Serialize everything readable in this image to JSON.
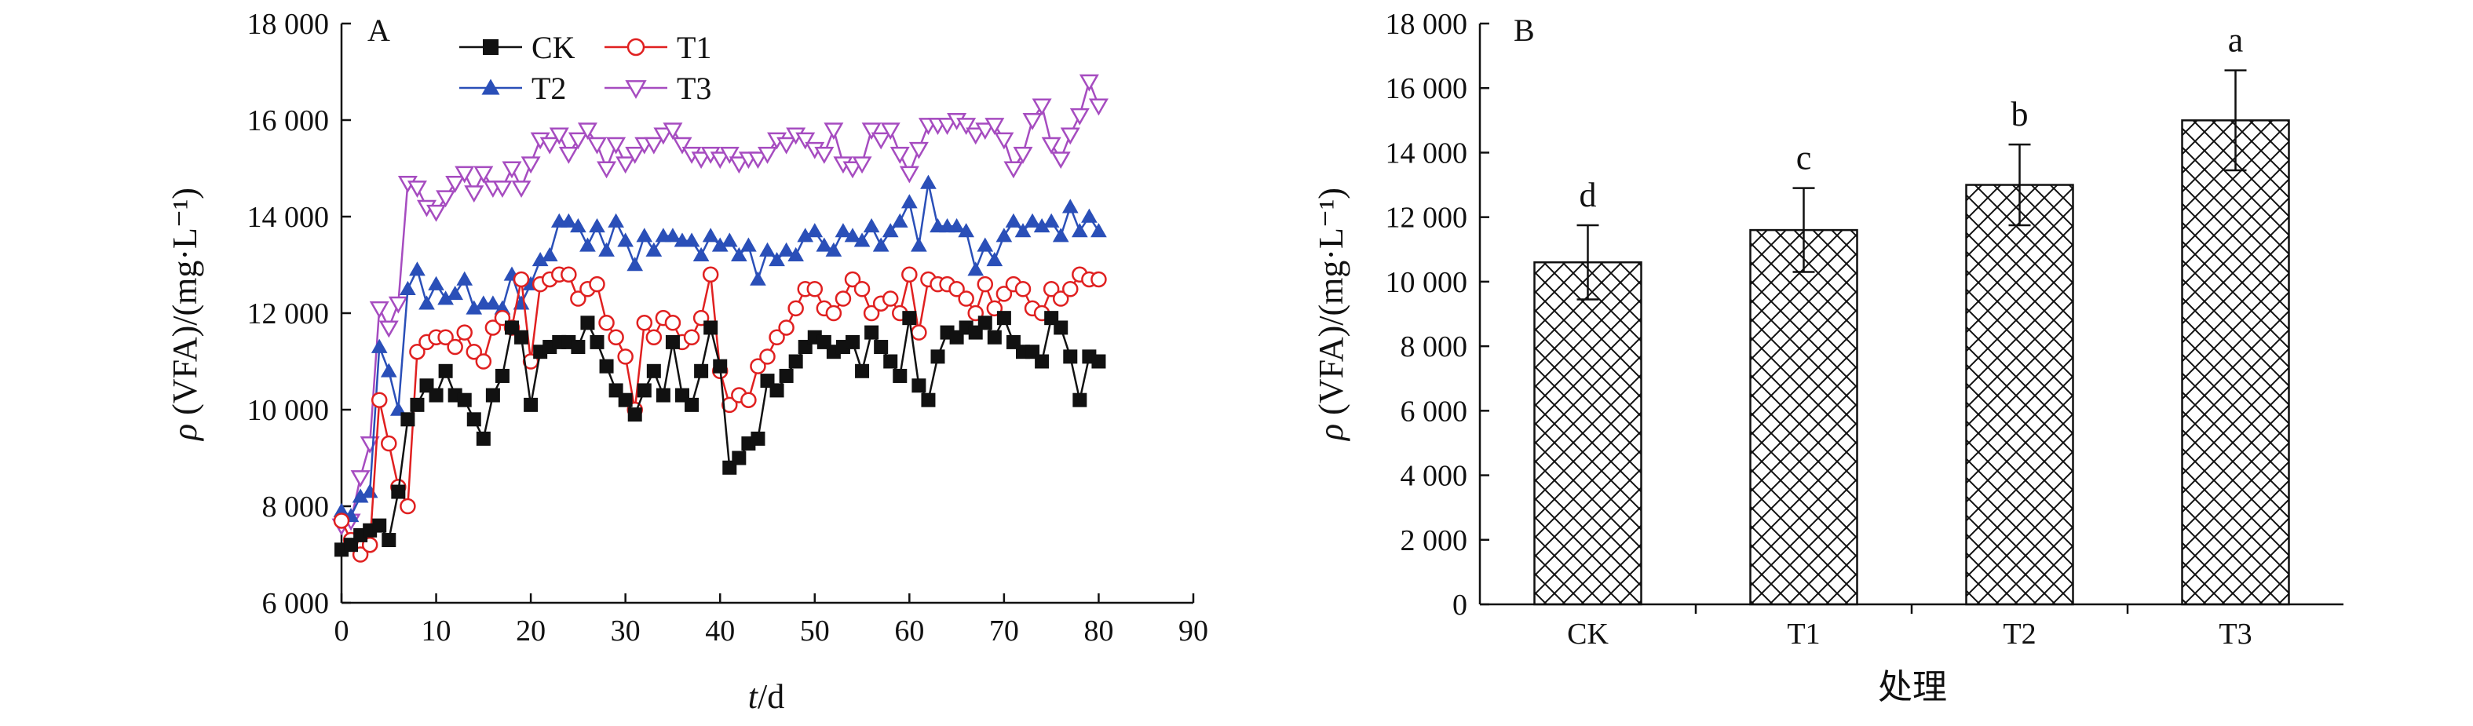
{
  "chart_data": [
    {
      "type": "line",
      "panel_label": "A",
      "xlabel_italic": "t",
      "xlabel_rest": "/d",
      "ylabel_italic": "ρ",
      "ylabel_rest": " (VFA)/(mg·L⁻¹)",
      "xlim": [
        0,
        90
      ],
      "ylim": [
        6000,
        18000
      ],
      "xticks": [
        0,
        10,
        20,
        30,
        40,
        50,
        60,
        70,
        80,
        90
      ],
      "yticks": [
        6000,
        8000,
        10000,
        12000,
        14000,
        16000,
        18000
      ],
      "xtick_labels": [
        "0",
        "10",
        "20",
        "30",
        "40",
        "50",
        "60",
        "70",
        "80",
        "90"
      ],
      "ytick_labels": [
        "6 000",
        "8 000",
        "10 000",
        "12 000",
        "14 000",
        "16 000",
        "18 000"
      ],
      "grid": false,
      "legend_position": "top-left",
      "series": [
        {
          "name": "CK",
          "marker": "square",
          "color": "#111111",
          "x": [
            0,
            1,
            2,
            3,
            4,
            5,
            6,
            7,
            8,
            9,
            10,
            11,
            12,
            13,
            14,
            15,
            16,
            17,
            18,
            19,
            20,
            21,
            22,
            23,
            24,
            25,
            26,
            27,
            28,
            29,
            30,
            31,
            32,
            33,
            34,
            35,
            36,
            37,
            38,
            39,
            40,
            41,
            42,
            43,
            44,
            45,
            46,
            47,
            48,
            49,
            50,
            51,
            52,
            53,
            54,
            55,
            56,
            57,
            58,
            59,
            60,
            61,
            62,
            63,
            64,
            65,
            66,
            67,
            68,
            69,
            70,
            71,
            72,
            73,
            74,
            75,
            76,
            77,
            78,
            79,
            80
          ],
          "y": [
            7100,
            7200,
            7400,
            7500,
            7600,
            7300,
            8300,
            9800,
            10100,
            10500,
            10300,
            10800,
            10300,
            10200,
            9800,
            9400,
            10300,
            10700,
            11700,
            11500,
            10100,
            11200,
            11300,
            11400,
            11400,
            11300,
            11800,
            11400,
            10900,
            10400,
            10200,
            9900,
            10400,
            10800,
            10300,
            11400,
            10300,
            10100,
            10800,
            11700,
            10900,
            8800,
            9000,
            9300,
            9400,
            10600,
            10400,
            10700,
            11000,
            11300,
            11500,
            11400,
            11200,
            11300,
            11400,
            10800,
            11600,
            11300,
            11000,
            10700,
            11900,
            10500,
            10200,
            11100,
            11600,
            11500,
            11700,
            11600,
            11800,
            11500,
            11900,
            11400,
            11200,
            11200,
            11000,
            11900,
            11700,
            11100,
            10200,
            11100,
            11000
          ]
        },
        {
          "name": "T1",
          "marker": "circle",
          "color": "#e02020",
          "x": [
            0,
            1,
            2,
            3,
            4,
            5,
            6,
            7,
            8,
            9,
            10,
            11,
            12,
            13,
            14,
            15,
            16,
            17,
            18,
            19,
            20,
            21,
            22,
            23,
            24,
            25,
            26,
            27,
            28,
            29,
            30,
            31,
            32,
            33,
            34,
            35,
            36,
            37,
            38,
            39,
            40,
            41,
            42,
            43,
            44,
            45,
            46,
            47,
            48,
            49,
            50,
            51,
            52,
            53,
            54,
            55,
            56,
            57,
            58,
            59,
            60,
            61,
            62,
            63,
            64,
            65,
            66,
            67,
            68,
            69,
            70,
            71,
            72,
            73,
            74,
            75,
            76,
            77,
            78,
            79,
            80
          ],
          "y": [
            7700,
            7300,
            7000,
            7200,
            10200,
            9300,
            8400,
            8000,
            11200,
            11400,
            11500,
            11500,
            11300,
            11600,
            11200,
            11000,
            11700,
            11900,
            11700,
            12700,
            11000,
            12600,
            12700,
            12800,
            12800,
            12300,
            12500,
            12600,
            11800,
            11500,
            11100,
            10000,
            11800,
            11500,
            11900,
            11800,
            11400,
            11500,
            11900,
            12800,
            10800,
            10100,
            10300,
            10200,
            10900,
            11100,
            11500,
            11700,
            12100,
            12500,
            12500,
            12100,
            12000,
            12300,
            12700,
            12500,
            12000,
            12200,
            12300,
            12000,
            12800,
            11600,
            12700,
            12600,
            12600,
            12500,
            12300,
            12000,
            12600,
            12100,
            12400,
            12600,
            12500,
            12100,
            12000,
            12500,
            12300,
            12500,
            12800,
            12700,
            12700
          ]
        },
        {
          "name": "T2",
          "marker": "triangle-up",
          "color": "#2a4fb8",
          "x": [
            0,
            1,
            2,
            3,
            4,
            5,
            6,
            7,
            8,
            9,
            10,
            11,
            12,
            13,
            14,
            15,
            16,
            17,
            18,
            19,
            20,
            21,
            22,
            23,
            24,
            25,
            26,
            27,
            28,
            29,
            30,
            31,
            32,
            33,
            34,
            35,
            36,
            37,
            38,
            39,
            40,
            41,
            42,
            43,
            44,
            45,
            46,
            47,
            48,
            49,
            50,
            51,
            52,
            53,
            54,
            55,
            56,
            57,
            58,
            59,
            60,
            61,
            62,
            63,
            64,
            65,
            66,
            67,
            68,
            69,
            70,
            71,
            72,
            73,
            74,
            75,
            76,
            77,
            78,
            79,
            80
          ],
          "y": [
            7900,
            7800,
            8200,
            8300,
            11300,
            10800,
            10000,
            12500,
            12900,
            12200,
            12600,
            12300,
            12400,
            12700,
            12100,
            12200,
            12200,
            12100,
            12800,
            12200,
            12600,
            13100,
            13200,
            13900,
            13900,
            13800,
            13400,
            13800,
            13300,
            13900,
            13500,
            13000,
            13600,
            13300,
            13600,
            13600,
            13500,
            13500,
            13200,
            13600,
            13400,
            13500,
            13200,
            13400,
            12700,
            13300,
            13100,
            13300,
            13200,
            13600,
            13700,
            13400,
            13300,
            13700,
            13600,
            13500,
            13800,
            13400,
            13700,
            13900,
            14300,
            13400,
            14700,
            13800,
            13800,
            13800,
            13700,
            12900,
            13400,
            13100,
            13600,
            13900,
            13700,
            13900,
            13800,
            13900,
            13600,
            14200,
            13700,
            14000,
            13700
          ]
        },
        {
          "name": "T3",
          "marker": "triangle-down",
          "color": "#a64cc0",
          "x": [
            0,
            1,
            2,
            3,
            4,
            5,
            6,
            7,
            8,
            9,
            10,
            11,
            12,
            13,
            14,
            15,
            16,
            17,
            18,
            19,
            20,
            21,
            22,
            23,
            24,
            25,
            26,
            27,
            28,
            29,
            30,
            31,
            32,
            33,
            34,
            35,
            36,
            37,
            38,
            39,
            40,
            41,
            42,
            43,
            44,
            45,
            46,
            47,
            48,
            49,
            50,
            51,
            52,
            53,
            54,
            55,
            56,
            57,
            58,
            59,
            60,
            61,
            62,
            63,
            64,
            65,
            66,
            67,
            68,
            69,
            70,
            71,
            72,
            73,
            74,
            75,
            76,
            77,
            78,
            79,
            80
          ],
          "y": [
            7600,
            7700,
            8600,
            9300,
            12100,
            11700,
            12200,
            14700,
            14600,
            14200,
            14100,
            14400,
            14700,
            14900,
            14500,
            14900,
            14600,
            14600,
            15000,
            14600,
            15100,
            15600,
            15500,
            15700,
            15300,
            15600,
            15800,
            15500,
            15000,
            15500,
            15100,
            15300,
            15500,
            15500,
            15700,
            15800,
            15500,
            15300,
            15200,
            15300,
            15200,
            15300,
            15100,
            15200,
            15200,
            15300,
            15600,
            15500,
            15700,
            15600,
            15400,
            15300,
            15800,
            15100,
            15000,
            15100,
            15800,
            15600,
            15800,
            15300,
            14900,
            15400,
            15900,
            15900,
            15900,
            16000,
            15900,
            15700,
            15800,
            15900,
            15600,
            15000,
            15300,
            16000,
            16300,
            15500,
            15200,
            15700,
            16100,
            16800,
            16300
          ]
        }
      ]
    },
    {
      "type": "bar",
      "panel_label": "B",
      "xlabel": "处理",
      "ylabel_italic": "ρ",
      "ylabel_rest": " (VFA)/(mg·L⁻¹)",
      "ylim": [
        0,
        18000
      ],
      "yticks": [
        0,
        2000,
        4000,
        6000,
        8000,
        10000,
        12000,
        14000,
        16000,
        18000
      ],
      "ytick_labels": [
        "0",
        "2 000",
        "4 000",
        "6 000",
        "8 000",
        "10 000",
        "12 000",
        "14 000",
        "16 000",
        "18 000"
      ],
      "grid": false,
      "categories": [
        "CK",
        "T1",
        "T2",
        "T3"
      ],
      "values": [
        10600,
        11600,
        13000,
        15000
      ],
      "errors": [
        1150,
        1300,
        1250,
        1550
      ],
      "significance": [
        "d",
        "c",
        "b",
        "a"
      ],
      "bar_pattern": "crosshatch"
    }
  ]
}
